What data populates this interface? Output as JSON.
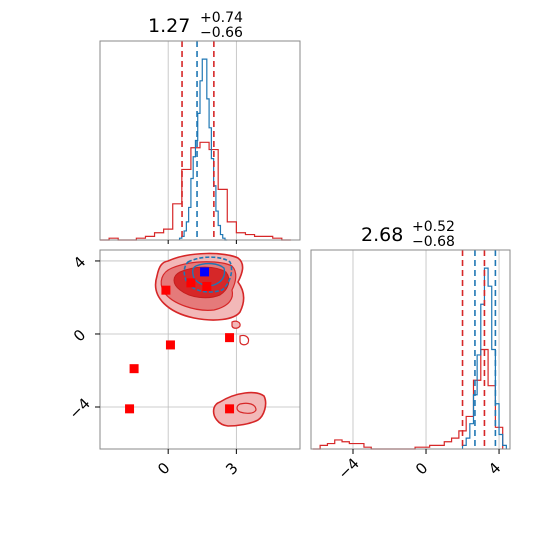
{
  "chart_data": {
    "type": "corner",
    "parameters": [
      "param_1",
      "param_2"
    ],
    "grid": true,
    "colors": {
      "series_a": "#d62728",
      "series_b": "#1f77b4",
      "truth_point": "#0000ff"
    },
    "titles": [
      {
        "param": "param_1",
        "median": "1.27",
        "plus": "+0.74",
        "minus": "−0.66"
      },
      {
        "param": "param_2",
        "median": "2.68",
        "plus": "+0.52",
        "minus": "−0.68"
      }
    ],
    "axes": {
      "x1": {
        "range": [
          -3.0,
          5.8
        ],
        "ticks": [
          0,
          3
        ],
        "tick_labels": [
          "0",
          "3"
        ]
      },
      "y2": {
        "range": [
          -6.3,
          4.6
        ],
        "ticks": [
          4,
          0,
          -4
        ],
        "tick_labels": [
          "4",
          "0",
          "−4"
        ]
      },
      "x2": {
        "range": [
          -6.3,
          4.6
        ],
        "ticks": [
          -4,
          0,
          4
        ],
        "tick_labels": [
          "−4",
          "0",
          "4"
        ]
      }
    },
    "quantile_lines": {
      "param_1": {
        "series_a": [
          0.61,
          2.01
        ],
        "series_b": [
          1.27
        ]
      },
      "param_2": {
        "series_a": [
          2.0,
          3.2
        ],
        "series_b": [
          2.68,
          3.8
        ]
      }
    },
    "hist_param_1": {
      "bins": [
        -3.0,
        -2.6,
        -2.2,
        -1.8,
        -1.4,
        -1.0,
        -0.6,
        -0.2,
        0.2,
        0.6,
        1.0,
        1.4,
        1.8,
        2.2,
        2.6,
        3.0,
        3.4,
        3.8,
        4.2,
        4.6,
        5.0,
        5.4
      ],
      "series_a": [
        0.0,
        0.01,
        0.0,
        0.0,
        0.01,
        0.02,
        0.04,
        0.06,
        0.2,
        0.39,
        0.51,
        0.54,
        0.5,
        0.28,
        0.1,
        0.04,
        0.03,
        0.02,
        0.02,
        0.01,
        0.0
      ],
      "series_b_bins": [
        0.5,
        0.6,
        0.7,
        0.8,
        0.9,
        1.0,
        1.1,
        1.2,
        1.3,
        1.4,
        1.5,
        1.6,
        1.7,
        1.8,
        1.9,
        2.0,
        2.1,
        2.2,
        2.3,
        2.4,
        2.5,
        2.6
      ],
      "series_b": [
        0.01,
        0.02,
        0.05,
        0.1,
        0.18,
        0.34,
        0.46,
        0.55,
        0.7,
        0.88,
        1.0,
        1.0,
        0.78,
        0.62,
        0.45,
        0.3,
        0.16,
        0.08,
        0.03,
        0.01,
        0.0
      ]
    },
    "hist_param_2": {
      "bins": [
        -6.2,
        -5.8,
        -5.4,
        -5.0,
        -4.6,
        -4.2,
        -3.8,
        -3.4,
        -3.0,
        -2.6,
        -2.2,
        -1.8,
        -1.4,
        -1.0,
        -0.6,
        -0.2,
        0.2,
        0.6,
        1.0,
        1.4,
        1.8,
        2.2,
        2.6,
        3.0,
        3.4,
        3.8,
        4.2
      ],
      "series_a": [
        0.0,
        0.02,
        0.03,
        0.05,
        0.04,
        0.03,
        0.03,
        0.01,
        0.0,
        0.0,
        0.0,
        0.0,
        0.0,
        0.0,
        0.01,
        0.01,
        0.02,
        0.02,
        0.04,
        0.06,
        0.1,
        0.18,
        0.38,
        0.55,
        0.35,
        0.12
      ],
      "series_b_bins": [
        2.0,
        2.2,
        2.4,
        2.6,
        2.8,
        3.0,
        3.2,
        3.4,
        3.6,
        3.8,
        4.0,
        4.2,
        4.4
      ],
      "series_b": [
        0.02,
        0.06,
        0.14,
        0.3,
        0.52,
        0.8,
        1.0,
        0.9,
        0.55,
        0.25,
        0.08,
        0.02
      ]
    },
    "scatter_squares": [
      {
        "x": -0.1,
        "y": 2.4
      },
      {
        "x": 1.0,
        "y": 2.8
      },
      {
        "x": 1.7,
        "y": 2.6
      },
      {
        "x": 2.7,
        "y": -0.2
      },
      {
        "x": 0.1,
        "y": -0.6
      },
      {
        "x": -1.5,
        "y": -1.9
      },
      {
        "x": -1.7,
        "y": -4.1
      },
      {
        "x": 2.7,
        "y": -4.1
      }
    ],
    "truth_point": {
      "x": 1.6,
      "y": 3.4
    }
  }
}
